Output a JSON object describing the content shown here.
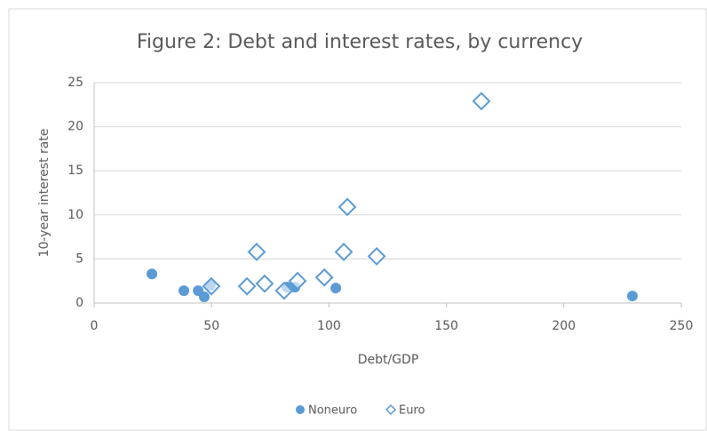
{
  "chart_data": {
    "type": "scatter",
    "title": "Figure 2: Debt and interest rates, by currency",
    "x_label": "Debt/GDP",
    "y_label": "10-year interest rate",
    "xlim": [
      0,
      250
    ],
    "xticks": [
      0,
      50,
      100,
      150,
      200,
      250
    ],
    "ylim": [
      0,
      25
    ],
    "yticks": [
      0,
      5,
      10,
      15,
      20,
      25
    ],
    "grid": true,
    "legend": "bottom",
    "series": [
      {
        "name": "Noneuro",
        "color": "#5b9bd5",
        "marker": "circle",
        "x": [
          24.6,
          38.2,
          44.3,
          46.9,
          49.5,
          82.1,
          85.5,
          102.9,
          229.2
        ],
        "values": [
          3.3,
          1.4,
          1.4,
          0.7,
          2.0,
          1.8,
          1.8,
          1.7,
          0.8
        ]
      },
      {
        "name": "Euro",
        "color": "#5b9bd5",
        "marker": "diamond",
        "x": [
          49.9,
          65.1,
          69.2,
          72.6,
          80.9,
          86.6,
          98.0,
          106.3,
          107.8,
          120.3,
          164.9
        ],
        "values": [
          1.9,
          1.9,
          5.8,
          2.2,
          1.4,
          2.5,
          2.9,
          5.8,
          10.9,
          5.3,
          22.9
        ]
      }
    ]
  }
}
